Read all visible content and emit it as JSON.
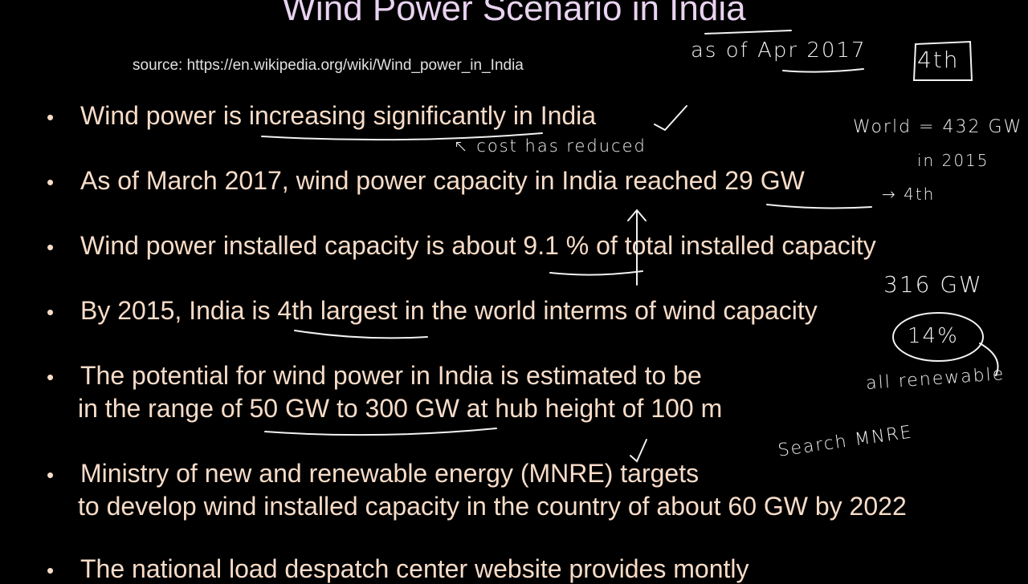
{
  "slide": {
    "title": "Wind Power Scenario in India",
    "source": "source: https://en.wikipedia.org/wiki/Wind_power_in_India",
    "bullets": [
      {
        "lines": [
          "Wind power is increasing significantly in India"
        ]
      },
      {
        "lines": [
          "As of March 2017, wind power capacity in India reached 29 GW"
        ]
      },
      {
        "lines": [
          "Wind power installed capacity is about 9.1 % of total installed capacity"
        ]
      },
      {
        "lines": [
          "By 2015, India is 4th largest in the world interms of wind capacity"
        ]
      },
      {
        "lines": [
          "The potential for wind power in India is estimated to be",
          "in the range of 50 GW to 300 GW at hub height of 100 m"
        ]
      },
      {
        "lines": [
          "Ministry of new and renewable energy (MNRE) targets",
          "to develop wind installed capacity in the country of about 60 GW by 2022"
        ]
      },
      {
        "lines": [
          "The national load despatch center website provides montly"
        ]
      }
    ],
    "annotations": [
      "as of Apr 2017",
      "4th",
      "World = 432 GW",
      "in 2015",
      "→ 4th",
      "↖ cost has reduced",
      "316 GW",
      "14%",
      "all renewable",
      "Search MNRE"
    ]
  }
}
